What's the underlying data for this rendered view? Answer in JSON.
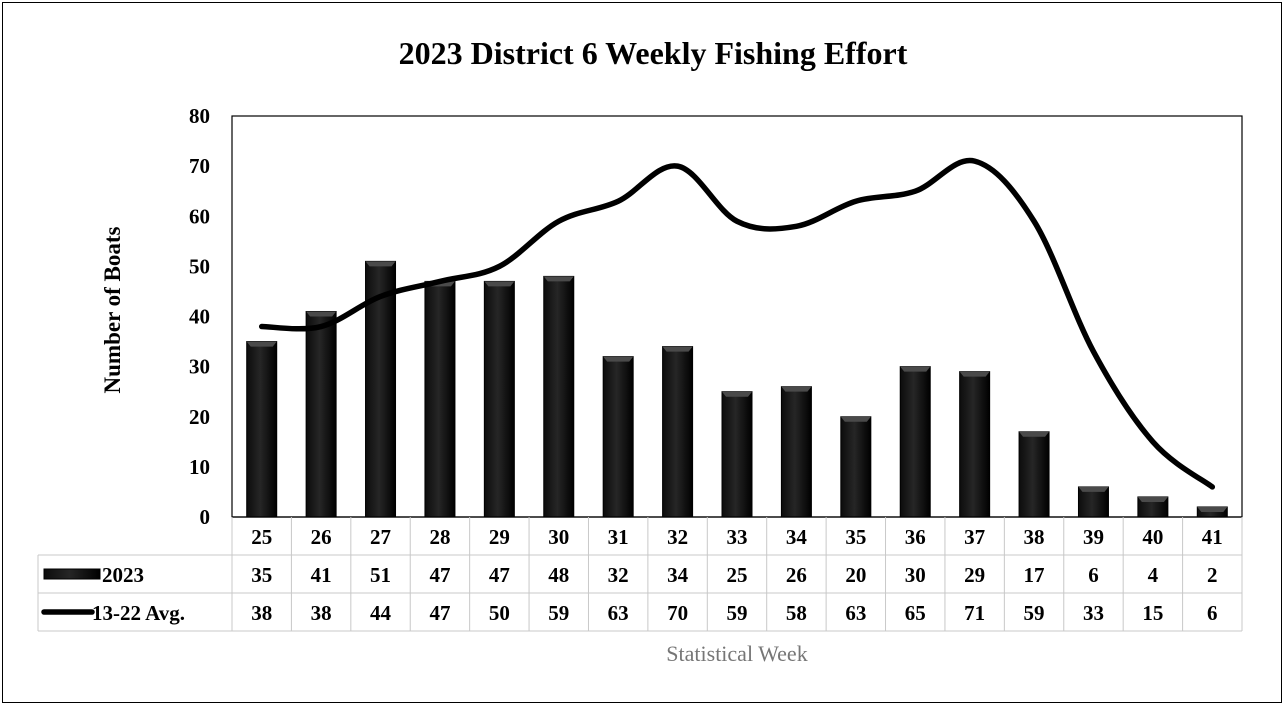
{
  "chart_data": {
    "type": "bar",
    "title": "2023 District 6 Weekly Fishing Effort",
    "xlabel": "Statistical Week",
    "ylabel": "Number of Boats",
    "ylim": [
      0,
      80
    ],
    "yticks": [
      0,
      10,
      20,
      30,
      40,
      50,
      60,
      70,
      80
    ],
    "grid": false,
    "legend": "data-table-left",
    "categories": [
      "25",
      "26",
      "27",
      "28",
      "29",
      "30",
      "31",
      "32",
      "33",
      "34",
      "35",
      "36",
      "37",
      "38",
      "39",
      "40",
      "41"
    ],
    "series": [
      {
        "name": "2023",
        "type": "bar",
        "color": "#000000",
        "values": [
          35,
          41,
          51,
          47,
          47,
          48,
          32,
          34,
          25,
          26,
          20,
          30,
          29,
          17,
          6,
          4,
          2
        ]
      },
      {
        "name": "13-22 Avg.",
        "type": "line",
        "color": "#000000",
        "values": [
          38,
          38,
          44,
          47,
          50,
          59,
          63,
          70,
          59,
          58,
          63,
          65,
          71,
          59,
          33,
          15,
          6
        ]
      }
    ]
  }
}
